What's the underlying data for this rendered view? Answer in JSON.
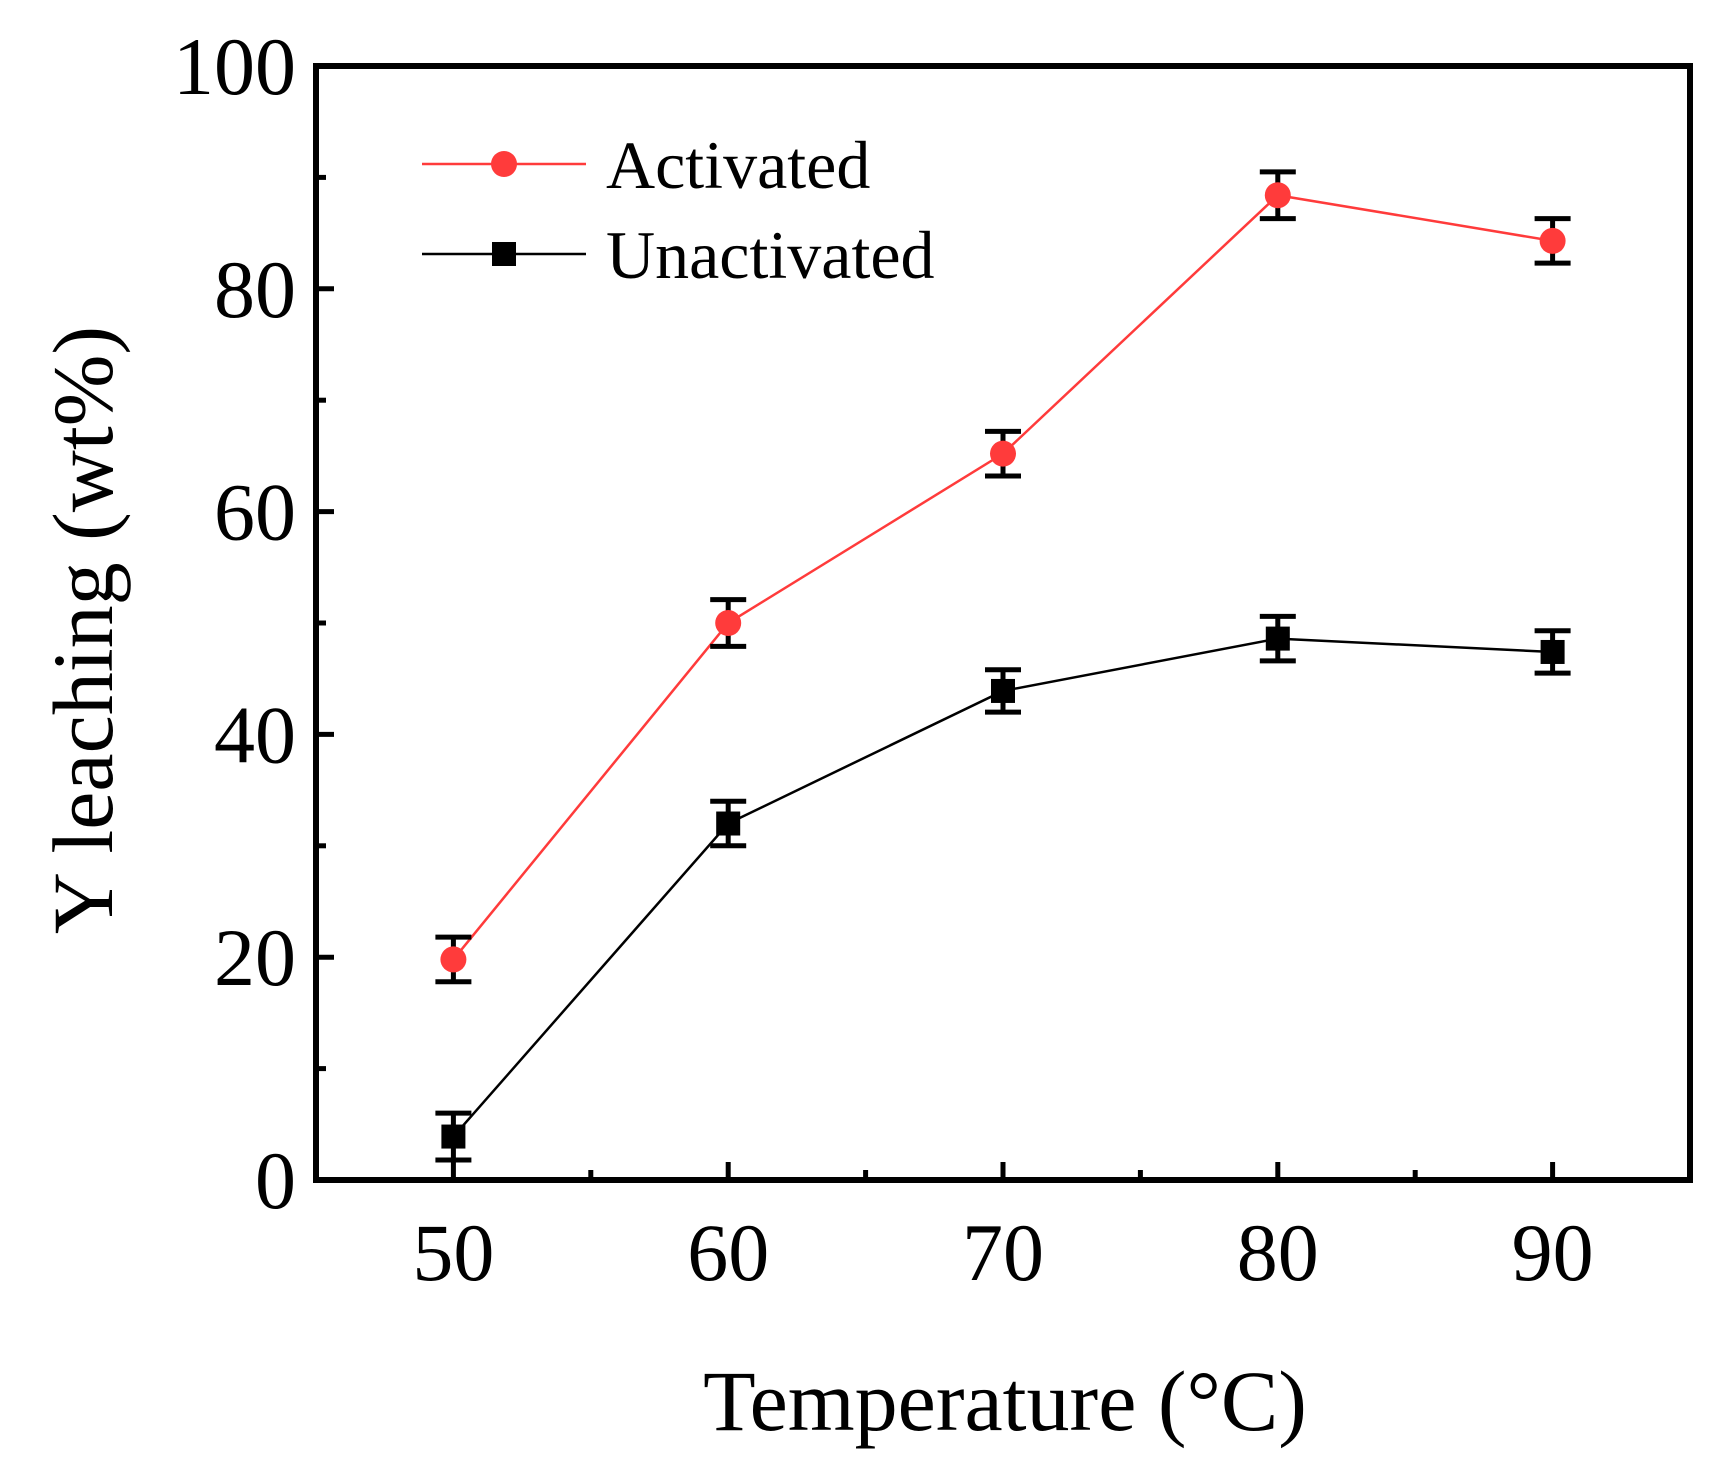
{
  "chart_data": {
    "type": "line",
    "xlabel": "Temperature (°C)",
    "ylabel": "Y leaching (wt%)",
    "xlim": [
      45,
      95
    ],
    "ylim": [
      0,
      100
    ],
    "xticks": [
      50,
      60,
      70,
      80,
      90
    ],
    "yticks": [
      0,
      20,
      40,
      60,
      80,
      100
    ],
    "x_minor_step": 5,
    "y_minor_step": 10,
    "grid": false,
    "legend_position": "top-left",
    "series": [
      {
        "name": "Activated",
        "color": "#ff3b3b",
        "line_color": "#ff3b3b",
        "marker": "circle",
        "x": [
          50,
          60,
          70,
          80,
          90
        ],
        "y": [
          19.8,
          50.0,
          65.2,
          88.4,
          84.3
        ],
        "error": [
          2.0,
          2.1,
          2.0,
          2.1,
          2.0
        ]
      },
      {
        "name": "Unactivated",
        "color": "#000000",
        "line_color": "#000000",
        "marker": "square",
        "x": [
          50,
          60,
          70,
          80,
          90
        ],
        "y": [
          3.9,
          32.0,
          43.9,
          48.6,
          47.4
        ],
        "error": [
          2.1,
          2.0,
          1.9,
          2.0,
          1.9
        ]
      }
    ]
  }
}
